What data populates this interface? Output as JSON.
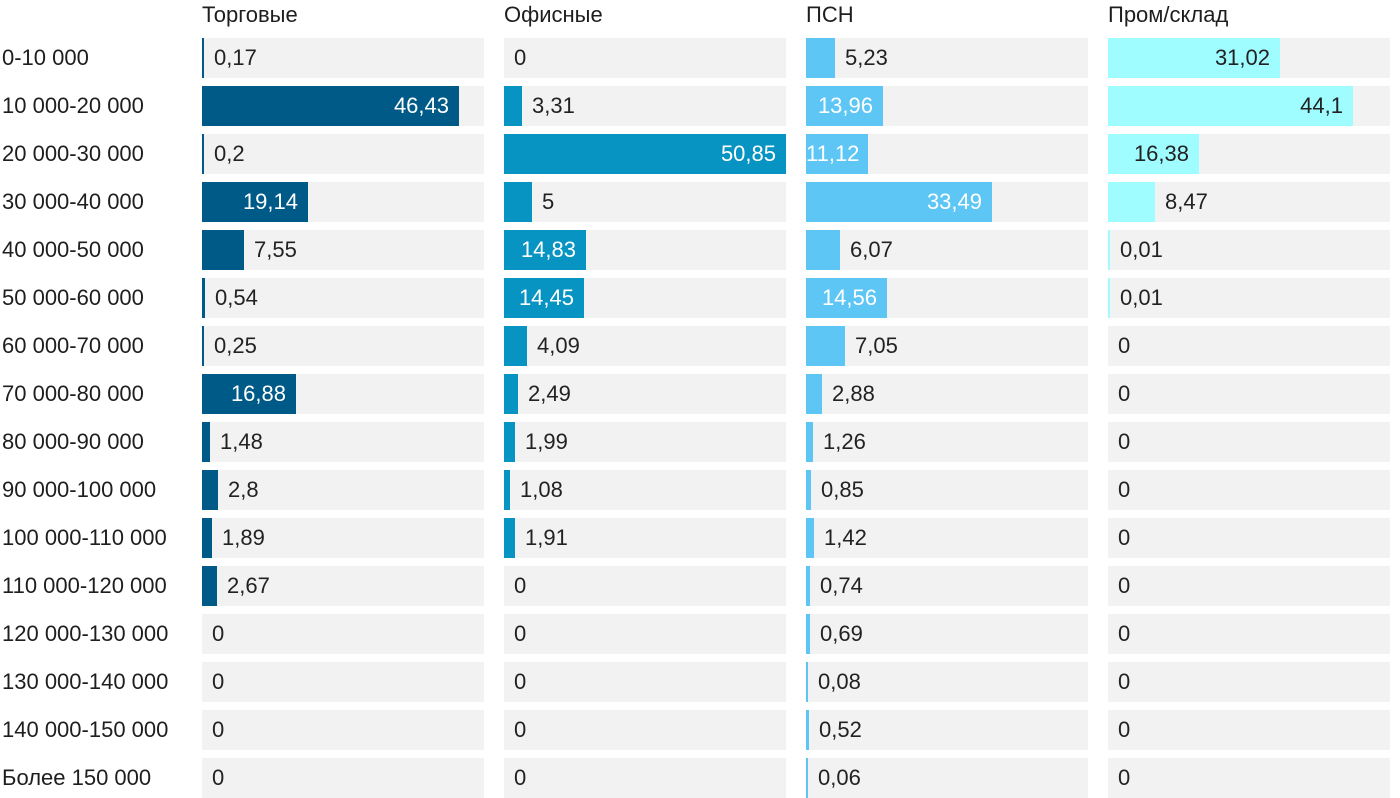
{
  "chart_data": {
    "type": "bar",
    "orientation": "horizontal",
    "layout": "small-multiples",
    "xlim": [
      0,
      50.85
    ],
    "categories": [
      "0-10 000",
      "10 000-20 000",
      "20 000-30 000",
      "30 000-40 000",
      "40 000-50 000",
      "50 000-60 000",
      "60 000-70 000",
      "70 000-80 000",
      "80 000-90 000",
      "90 000-100 000",
      "100 000-110 000",
      "110 000-120 000",
      "120 000-130 000",
      "130 000-140 000",
      "140 000-150 000",
      "Более 150 000"
    ],
    "series": [
      {
        "name": "Торговые",
        "color": "#005a87",
        "values": [
          0.17,
          46.43,
          0.2,
          19.14,
          7.55,
          0.54,
          0.25,
          16.88,
          1.48,
          2.8,
          1.89,
          2.67,
          0,
          0,
          0,
          0
        ],
        "labels": [
          "0,17",
          "46,43",
          "0,2",
          "19,14",
          "7,55",
          "0,54",
          "0,25",
          "16,88",
          "1,48",
          "2,8",
          "1,89",
          "2,67",
          "0",
          "0",
          "0",
          "0"
        ]
      },
      {
        "name": "Офисные",
        "color": "#0894c3",
        "values": [
          0,
          3.31,
          50.85,
          5,
          14.83,
          14.45,
          4.09,
          2.49,
          1.99,
          1.08,
          1.91,
          0,
          0,
          0,
          0,
          0
        ],
        "labels": [
          "0",
          "3,31",
          "50,85",
          "5",
          "14,83",
          "14,45",
          "4,09",
          "2,49",
          "1,99",
          "1,08",
          "1,91",
          "0",
          "0",
          "0",
          "0",
          "0"
        ]
      },
      {
        "name": "ПСН",
        "color": "#5ec6f5",
        "values": [
          5.23,
          13.96,
          11.12,
          33.49,
          6.07,
          14.56,
          7.05,
          2.88,
          1.26,
          0.85,
          1.42,
          0.74,
          0.69,
          0.08,
          0.52,
          0.06
        ],
        "labels": [
          "5,23",
          "13,96",
          "11,12",
          "33,49",
          "6,07",
          "14,56",
          "7,05",
          "2,88",
          "1,26",
          "0,85",
          "1,42",
          "0,74",
          "0,69",
          "0,08",
          "0,52",
          "0,06"
        ]
      },
      {
        "name": "Пром/склад",
        "color": "#9ffcff",
        "values": [
          31.02,
          44.1,
          16.38,
          8.47,
          0.01,
          0.01,
          0,
          0,
          0,
          0,
          0,
          0,
          0,
          0,
          0,
          0
        ],
        "labels": [
          "31,02",
          "44,1",
          "16,38",
          "8,47",
          "0,01",
          "0,01",
          "0",
          "0",
          "0",
          "0",
          "0",
          "0",
          "0",
          "0",
          "0",
          "0"
        ]
      }
    ],
    "track_color": "#f2f2f2"
  }
}
